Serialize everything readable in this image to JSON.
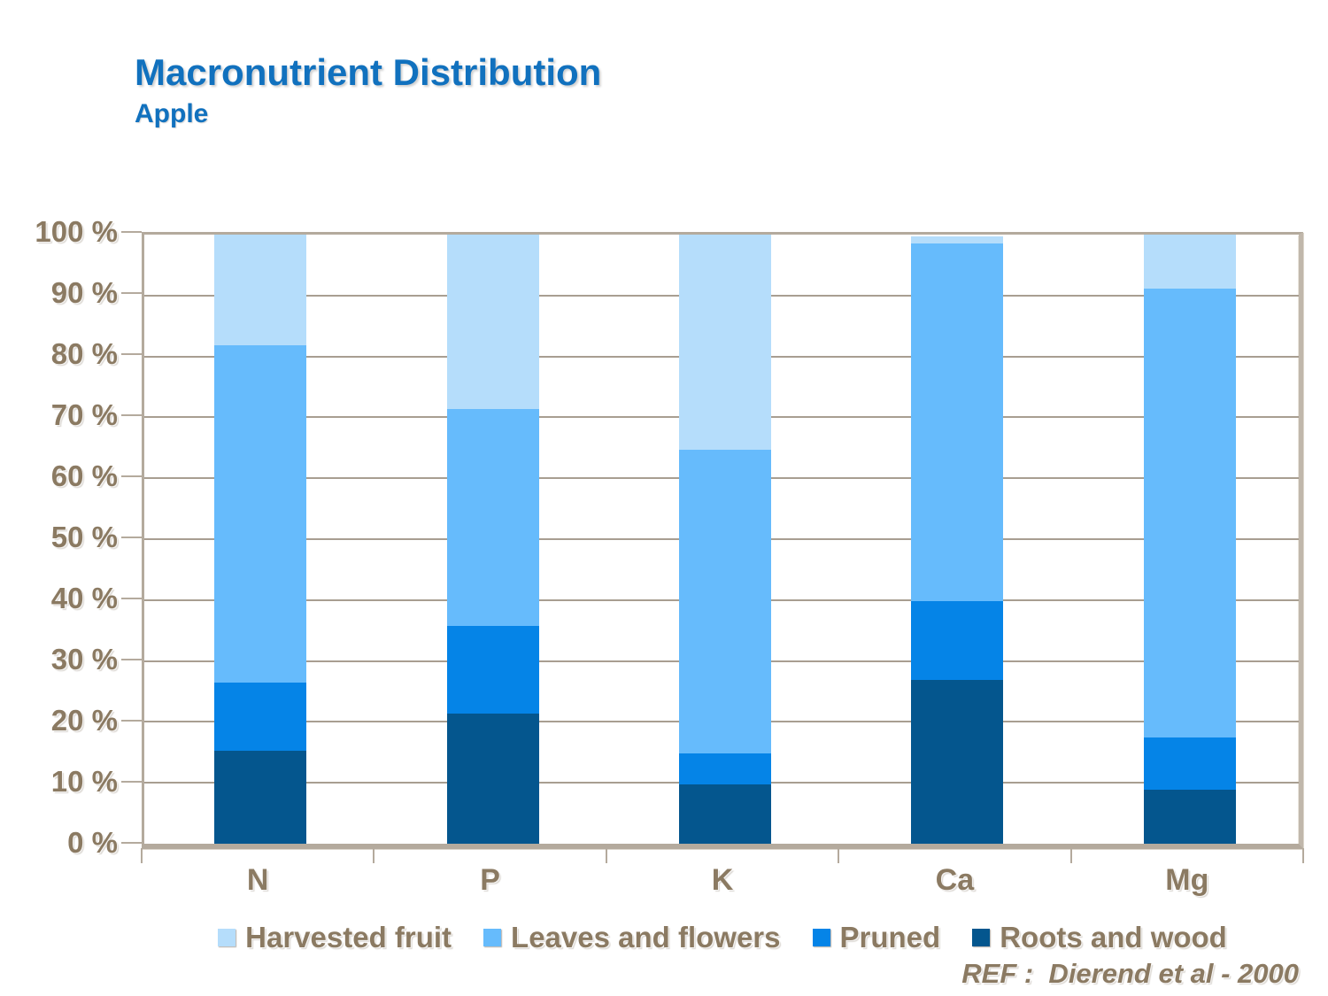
{
  "header": {
    "title": "Macronutrient Distribution",
    "subtitle": "Apple",
    "title_color": "#1171BE"
  },
  "footer": {
    "ref_text": "REF :  Dierend et al - 2000"
  },
  "colors": {
    "harvested_fruit": "#B5DDFB",
    "leaves_and_flowers": "#66BBFC",
    "pruned": "#0584E7",
    "roots_and_wood": "#04568E",
    "axis_text": "#8B7A62",
    "gridline": "#A89E91",
    "axis_border": "#B4AA9D"
  },
  "chart_data": {
    "type": "bar",
    "stacked": true,
    "percent_stacked": true,
    "title": "Macronutrient Distribution",
    "subtitle": "Apple",
    "categories": [
      "N",
      "P",
      "K",
      "Ca",
      "Mg"
    ],
    "series": [
      {
        "name": "Roots and wood",
        "color": "#04568E",
        "values": [
          15.2,
          21.3,
          9.7,
          26.9,
          8.8
        ]
      },
      {
        "name": "Pruned",
        "color": "#0584E7",
        "values": [
          11.2,
          14.5,
          5.1,
          12.9,
          8.6
        ]
      },
      {
        "name": "Leaves and flowers",
        "color": "#66BBFC",
        "values": [
          55.4,
          35.6,
          49.9,
          58.8,
          73.8
        ]
      },
      {
        "name": "Harvested fruit",
        "color": "#B5DDFB",
        "values": [
          18.2,
          28.6,
          35.3,
          1.1,
          8.8
        ]
      }
    ],
    "series_stack_order": "bottom-to-top",
    "legend": [
      {
        "label": "Harvested fruit",
        "color": "#B5DDFB"
      },
      {
        "label": "Leaves and flowers",
        "color": "#66BBFC"
      },
      {
        "label": "Pruned",
        "color": "#0584E7"
      },
      {
        "label": "Roots and wood",
        "color": "#04568E"
      }
    ],
    "legend_position": "bottom",
    "ylim": [
      0,
      100
    ],
    "ytick_step": 10,
    "ytick_labels": [
      "100 %",
      "90 %",
      "80 %",
      "70 %",
      "60 %",
      "50 %",
      "40 %",
      "30 %",
      "20 %",
      "10 %",
      "0 %"
    ],
    "grid": true
  }
}
